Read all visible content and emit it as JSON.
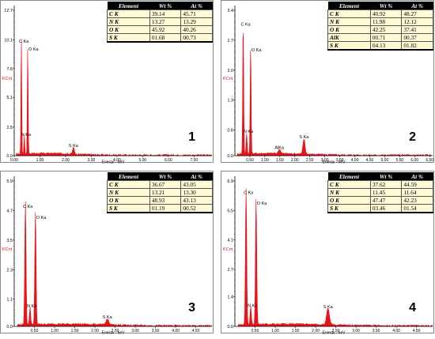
{
  "colors": {
    "spectrum": "#e8141b",
    "axis": "#000000",
    "kcnt": "#e8141b"
  },
  "panels": [
    {
      "number": "1",
      "ylabel": "KCnt",
      "xlabel": "Energy - keV",
      "yticks": [
        "12.7",
        "10.1",
        "7.6",
        "5.1",
        "2.5",
        "0.0"
      ],
      "xticks": [
        "0.00",
        "1.00",
        "2.00",
        "3.00",
        "4.00",
        "5.00",
        "6.00",
        "7.00"
      ],
      "peaks": [
        "C Ka",
        "O Ka",
        "N Ka",
        "S Ka"
      ],
      "table": {
        "headers": [
          "Element",
          "Wt %",
          "At %"
        ],
        "rows": [
          [
            "C K",
            "39.14",
            "45.71"
          ],
          [
            "N K",
            "13.27",
            "13.29"
          ],
          [
            "O K",
            "45.92",
            "40.26"
          ],
          [
            "S K",
            "01.68",
            "00.73"
          ]
        ]
      }
    },
    {
      "number": "2",
      "ylabel": "KCnt",
      "xlabel": "Energy - keV",
      "yticks": [
        "3.4",
        "2.7",
        "2.0",
        "1.3",
        "0.6",
        "0.0"
      ],
      "xticks": [
        "0.50",
        "1.00",
        "1.50",
        "2.00",
        "2.50",
        "3.00",
        "3.50",
        "4.00",
        "4.50",
        "5.00",
        "5.50",
        "6.00",
        "6.50"
      ],
      "peaks": [
        "C Ka",
        "O Ka",
        "N Ka",
        "AlKa",
        "S Ka"
      ],
      "table": {
        "headers": [
          "Element",
          "Wt %",
          "At %"
        ],
        "rows": [
          [
            "C K",
            "40.92",
            "48.27"
          ],
          [
            "N K",
            "11.98",
            "12.12"
          ],
          [
            "O K",
            "42.25",
            "37.41"
          ],
          [
            "AlK",
            "00.71",
            "00.37"
          ],
          [
            "S K",
            "04.13",
            "01.82"
          ]
        ]
      }
    },
    {
      "number": "3",
      "ylabel": "KCnt",
      "xlabel": "Energy - keV",
      "yticks": [
        "5.9",
        "4.7",
        "3.5",
        "2.3",
        "1.1",
        "0.0"
      ],
      "xticks": [
        "0.50",
        "1.00",
        "1.50",
        "2.00",
        "2.50",
        "3.00",
        "3.50",
        "4.00",
        "4.50"
      ],
      "peaks": [
        "C Ka",
        "O Ka",
        "N Ka",
        "S Ka"
      ],
      "table": {
        "headers": [
          "Element",
          "Wt %",
          "At %"
        ],
        "rows": [
          [
            "C K",
            "36.67",
            "43.05"
          ],
          [
            "N K",
            "13.21",
            "13.30"
          ],
          [
            "O K",
            "48.93",
            "43.13"
          ],
          [
            "S K",
            "01.19",
            "00.52"
          ]
        ]
      }
    },
    {
      "number": "4",
      "ylabel": "KCnt",
      "xlabel": "Energy - keV",
      "yticks": [
        "6.9",
        "5.5",
        "4.1",
        "2.7",
        "1.4",
        "0.0"
      ],
      "xticks": [
        "0.50",
        "1.00",
        "1.50",
        "2.00",
        "2.50",
        "3.00",
        "3.50",
        "4.00",
        "4.50"
      ],
      "peaks": [
        "C Ka",
        "O Ka",
        "N Ka",
        "S Ka"
      ],
      "table": {
        "headers": [
          "Element",
          "Wt %",
          "At %"
        ],
        "rows": [
          [
            "C K",
            "37.62",
            "44.59"
          ],
          [
            "N K",
            "11.45",
            "11.64"
          ],
          [
            "O K",
            "47.47",
            "42.23"
          ],
          [
            "S K",
            "03.46",
            "01.54"
          ]
        ]
      }
    }
  ],
  "chart_data": [
    {
      "type": "area",
      "ylabel": "KCnt",
      "xlabel": "Energy - keV",
      "xlim": [
        0,
        7.7
      ],
      "ylim": [
        0,
        12.7
      ],
      "peaks": [
        {
          "label": "C Ka",
          "x": 0.277,
          "y": 10.3
        },
        {
          "label": "N Ka",
          "x": 0.392,
          "y": 1.6
        },
        {
          "label": "O Ka",
          "x": 0.525,
          "y": 9.6
        },
        {
          "label": "S Ka",
          "x": 2.307,
          "y": 0.55
        }
      ]
    },
    {
      "type": "area",
      "ylabel": "KCnt",
      "xlabel": "Energy - keV",
      "xlim": [
        0,
        6.6
      ],
      "ylim": [
        0,
        3.4
      ],
      "peaks": [
        {
          "label": "C Ka",
          "x": 0.277,
          "y": 3.15
        },
        {
          "label": "N Ka",
          "x": 0.392,
          "y": 0.5
        },
        {
          "label": "O Ka",
          "x": 0.525,
          "y": 2.55
        },
        {
          "label": "AlKa",
          "x": 1.486,
          "y": 0.1
        },
        {
          "label": "S Ka",
          "x": 2.307,
          "y": 0.35
        }
      ]
    },
    {
      "type": "area",
      "ylabel": "KCnt",
      "xlabel": "Energy - keV",
      "xlim": [
        0,
        4.9
      ],
      "ylim": [
        0,
        5.9
      ],
      "peaks": [
        {
          "label": "C Ka",
          "x": 0.277,
          "y": 5.0
        },
        {
          "label": "N Ka",
          "x": 0.392,
          "y": 0.7
        },
        {
          "label": "O Ka",
          "x": 0.525,
          "y": 4.55
        },
        {
          "label": "S Ka",
          "x": 2.307,
          "y": 0.22
        }
      ]
    },
    {
      "type": "area",
      "ylabel": "KCnt",
      "xlabel": "Energy - keV",
      "xlim": [
        0,
        4.9
      ],
      "ylim": [
        0,
        6.9
      ],
      "peaks": [
        {
          "label": "C Ka",
          "x": 0.277,
          "y": 6.5
        },
        {
          "label": "N Ka",
          "x": 0.392,
          "y": 0.85
        },
        {
          "label": "O Ka",
          "x": 0.525,
          "y": 6.0
        },
        {
          "label": "S Ka",
          "x": 2.307,
          "y": 0.75
        }
      ]
    }
  ]
}
